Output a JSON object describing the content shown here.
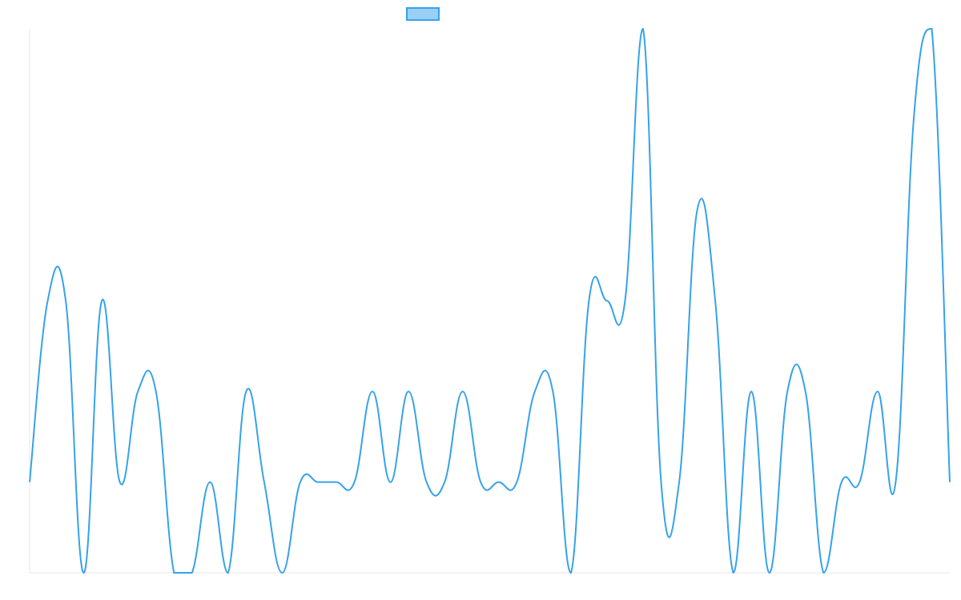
{
  "chart_data": {
    "type": "line",
    "series": [
      {
        "color": "#36a2eb",
        "values": [
          1,
          3,
          3,
          0,
          3,
          1,
          2,
          2,
          0,
          0,
          1,
          0,
          2,
          1,
          0,
          1,
          1,
          1,
          1,
          2,
          1,
          2,
          1,
          1,
          2,
          1,
          1,
          1,
          2,
          2,
          0,
          3,
          3,
          3,
          6,
          1,
          1,
          4,
          3,
          0,
          2,
          0,
          2,
          2,
          0,
          1,
          1,
          2,
          1,
          5,
          6,
          1
        ]
      }
    ],
    "ylim": [
      0,
      6
    ],
    "legend": "top"
  }
}
